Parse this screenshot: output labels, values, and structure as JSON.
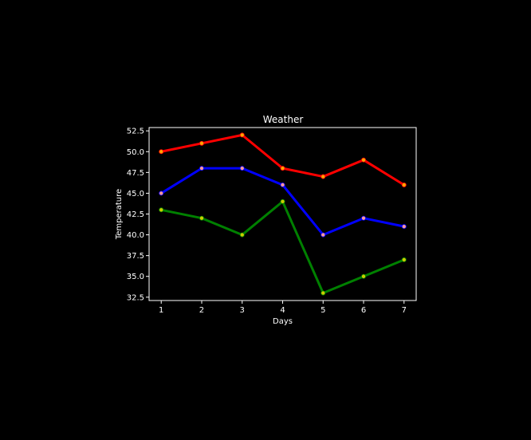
{
  "chart_data": {
    "type": "line",
    "title": "Weather",
    "xlabel": "Days",
    "ylabel": "Temperature",
    "x": [
      1,
      2,
      3,
      4,
      5,
      6,
      7
    ],
    "xlim": [
      0.7,
      7.3
    ],
    "ylim": [
      32.1,
      52.9
    ],
    "x_ticks": [
      "1",
      "2",
      "3",
      "4",
      "5",
      "6",
      "7"
    ],
    "y_ticks": [
      "32.5",
      "35.0",
      "37.5",
      "40.0",
      "42.5",
      "45.0",
      "47.5",
      "50.0",
      "52.5"
    ],
    "grid": false,
    "legend": "none",
    "background": "#000000",
    "text_color": "#ffffff",
    "series": [
      {
        "color": "#ff0000",
        "marker_color": "#ffa500",
        "values": [
          50,
          51,
          52,
          48,
          47,
          49,
          46
        ]
      },
      {
        "color": "#0000ff",
        "marker_color": "#ff9999",
        "values": [
          45,
          48,
          48,
          46,
          40,
          42,
          41
        ]
      },
      {
        "color": "#008000",
        "marker_color": "#cccc00",
        "values": [
          43,
          42,
          40,
          44,
          33,
          35,
          37
        ]
      }
    ]
  }
}
